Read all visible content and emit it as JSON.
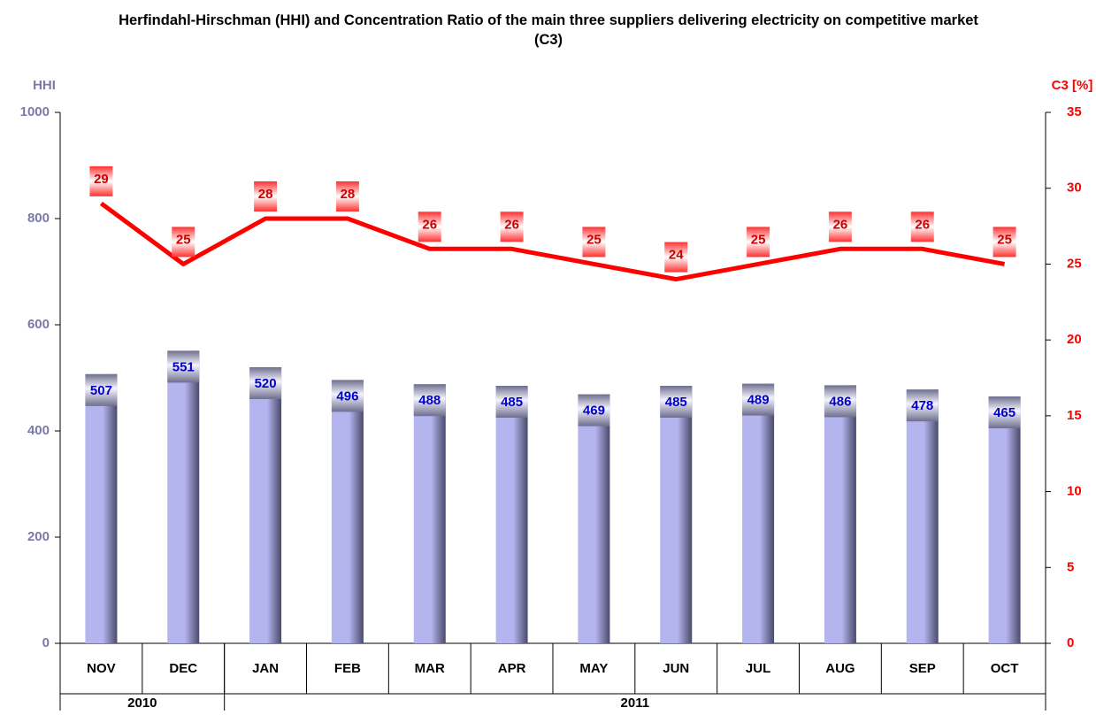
{
  "chart_data": {
    "type": "combo",
    "title": "Herfindahl-Hirschman (HHI) and Concentration Ratio of the main three suppliers delivering electricity on competitive market (C3)",
    "y_label": "HHI",
    "y2_label": "C3 [%]",
    "categories": [
      "NOV",
      "DEC",
      "JAN",
      "FEB",
      "MAR",
      "APR",
      "MAY",
      "JUN",
      "JUL",
      "AUG",
      "SEP",
      "OCT"
    ],
    "x_groups": [
      {
        "label": "2010",
        "span": 2
      },
      {
        "label": "2011",
        "span": 10
      }
    ],
    "series": [
      {
        "type": "bar",
        "color": "#b4b4ee",
        "label_color": "#0000cc",
        "values": [
          507,
          551,
          520,
          496,
          488,
          485,
          469,
          485,
          489,
          486,
          478,
          465
        ]
      },
      {
        "type": "line",
        "axis": "y2",
        "color": "#ff0000",
        "label_color": "#cc0000",
        "values": [
          29,
          25,
          28,
          28,
          26,
          26,
          25,
          24,
          25,
          26,
          26,
          25
        ]
      }
    ],
    "ylim": [
      0,
      1000
    ],
    "yticks": [
      0,
      200,
      400,
      600,
      800,
      1000
    ],
    "y_color": "#7a7aa8",
    "y2lim": [
      0,
      35
    ],
    "y2ticks": [
      0,
      5,
      10,
      15,
      20,
      25,
      30,
      35
    ],
    "y2_color": "#ff0000",
    "grid": false
  }
}
